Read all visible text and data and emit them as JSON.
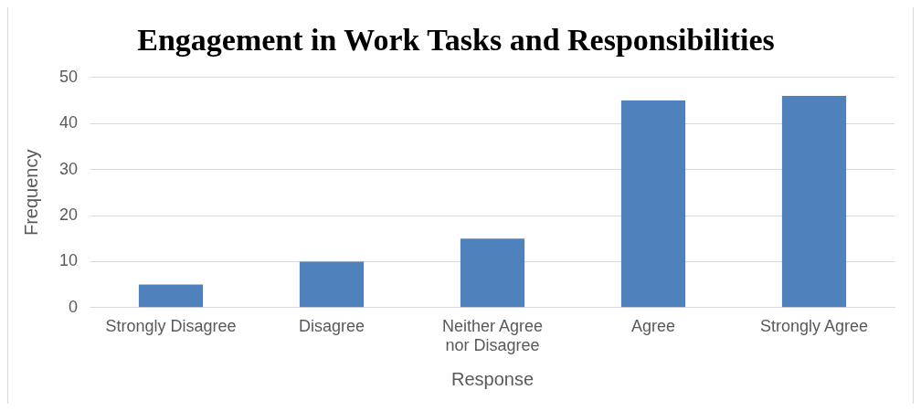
{
  "chart_data": {
    "type": "bar",
    "title": "Engagement in Work Tasks and Responsibilities",
    "xlabel": "Response",
    "ylabel": "Frequency",
    "categories": [
      "Strongly Disagree",
      "Disagree",
      "Neither Agree nor Disagree",
      "Agree",
      "Strongly Agree"
    ],
    "values": [
      5,
      10,
      15,
      45,
      46
    ],
    "color": "#4f81bd",
    "ylim": [
      0,
      50
    ],
    "yticks": [
      0,
      10,
      20,
      30,
      40,
      50
    ],
    "grid": "y",
    "legend": false
  }
}
